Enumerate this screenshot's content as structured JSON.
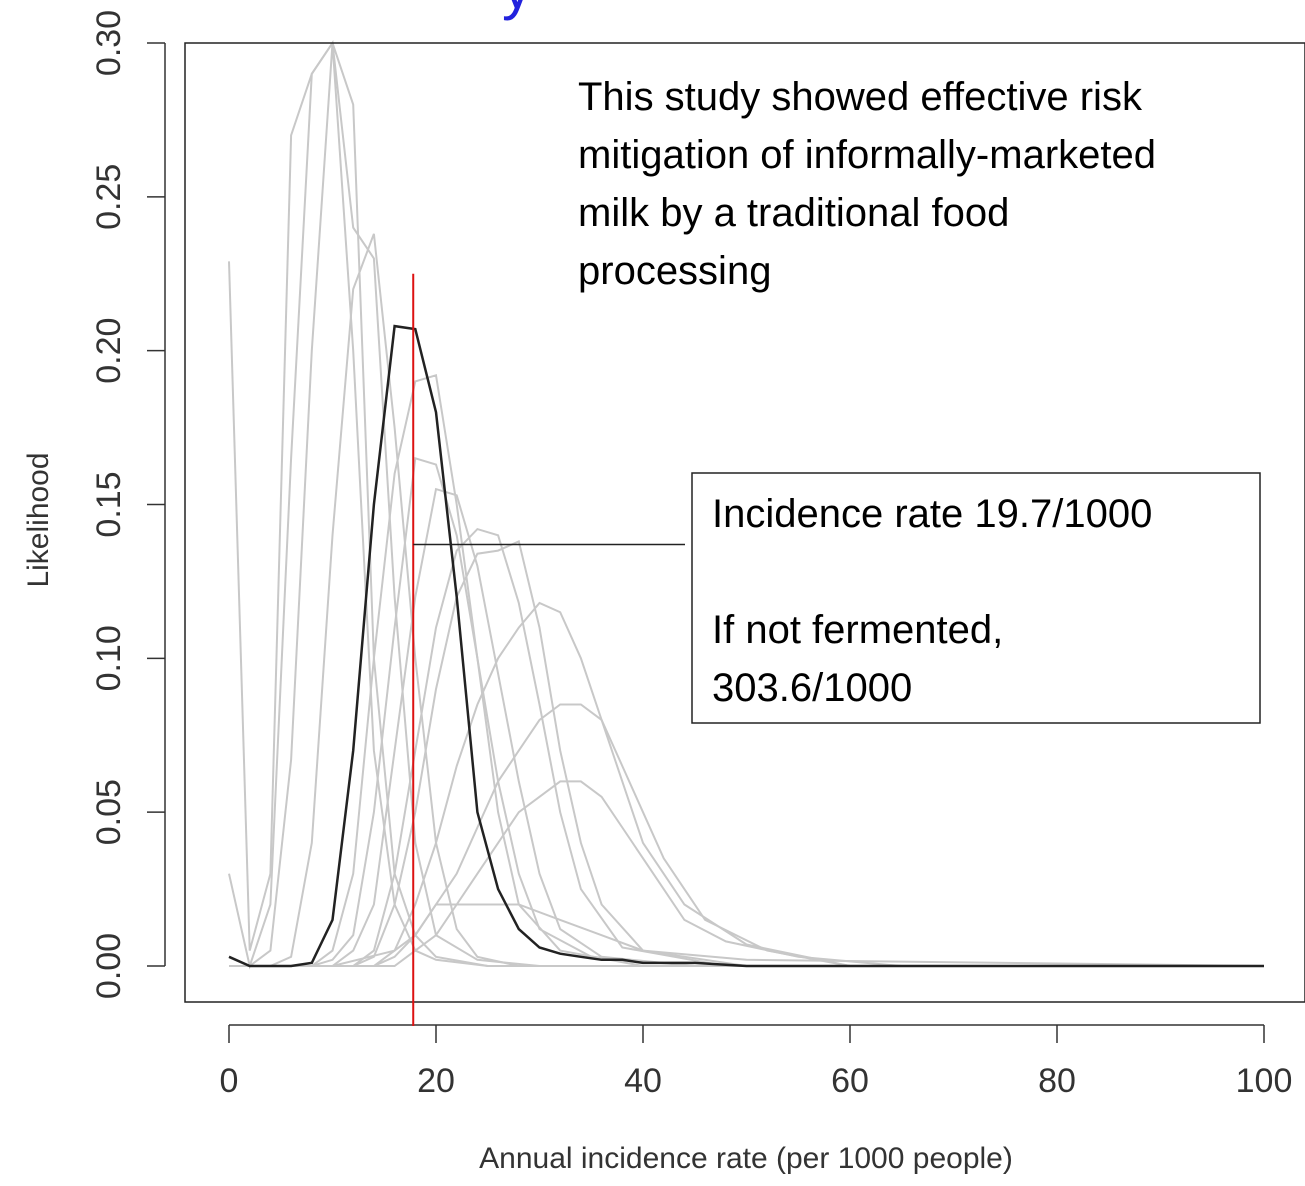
{
  "chart_data": {
    "type": "line",
    "title_fragment": "y",
    "xlabel": "Annual incidence rate (per 1000 people)",
    "ylabel": "Likelihood",
    "xlim": [
      0,
      100
    ],
    "ylim": [
      0,
      0.3
    ],
    "x_ticks": [
      "0",
      "20",
      "40",
      "60",
      "80",
      "100"
    ],
    "y_ticks": [
      "0.00",
      "0.05",
      "0.10",
      "0.15",
      "0.20",
      "0.25",
      "0.30"
    ],
    "grid": false,
    "colors": {
      "highlight": "#222222",
      "background_series": "#c8c8c8",
      "marker": "#dd1111",
      "title": "#2222dd"
    },
    "highlight_series": {
      "x": [
        0,
        2,
        4,
        6,
        8,
        10,
        12,
        14,
        16,
        18,
        20,
        22,
        24,
        26,
        28,
        30,
        32,
        34,
        36,
        38,
        40,
        45,
        50,
        60,
        70,
        80,
        90,
        100
      ],
      "y": [
        0.003,
        0.0,
        0.0,
        0.0,
        0.001,
        0.015,
        0.07,
        0.15,
        0.208,
        0.207,
        0.18,
        0.12,
        0.05,
        0.025,
        0.012,
        0.006,
        0.004,
        0.003,
        0.002,
        0.002,
        0.001,
        0.001,
        0.0,
        0.0,
        0.0,
        0.0,
        0.0,
        0.0
      ]
    },
    "background_series": [
      {
        "x": [
          0,
          2,
          4,
          6,
          8,
          10,
          12,
          14,
          16,
          18,
          20,
          25,
          30,
          100
        ],
        "y": [
          0.229,
          0.005,
          0.03,
          0.27,
          0.29,
          0.3,
          0.2,
          0.07,
          0.02,
          0.005,
          0.002,
          0.0,
          0.0,
          0.0
        ]
      },
      {
        "x": [
          0,
          2,
          4,
          6,
          8,
          10,
          12,
          14,
          16,
          18,
          20,
          25,
          100
        ],
        "y": [
          0.03,
          0.0,
          0.02,
          0.165,
          0.29,
          0.3,
          0.28,
          0.1,
          0.03,
          0.01,
          0.003,
          0.0,
          0.0
        ]
      },
      {
        "x": [
          0,
          2,
          4,
          6,
          8,
          10,
          12,
          14,
          16,
          18,
          20,
          24,
          30,
          100
        ],
        "y": [
          0.0,
          0.0,
          0.005,
          0.067,
          0.2,
          0.3,
          0.24,
          0.23,
          0.12,
          0.04,
          0.01,
          0.002,
          0.0,
          0.0
        ]
      },
      {
        "x": [
          0,
          4,
          6,
          8,
          10,
          12,
          14,
          16,
          18,
          20,
          22,
          24,
          28,
          35,
          100
        ],
        "y": [
          0.0,
          0.0,
          0.003,
          0.04,
          0.14,
          0.22,
          0.238,
          0.175,
          0.1,
          0.04,
          0.012,
          0.003,
          0.0,
          0.0,
          0.0
        ]
      },
      {
        "x": [
          0,
          8,
          10,
          12,
          14,
          16,
          18,
          20,
          22,
          24,
          26,
          28,
          32,
          40,
          100
        ],
        "y": [
          0.0,
          0.0,
          0.005,
          0.03,
          0.1,
          0.16,
          0.19,
          0.192,
          0.15,
          0.1,
          0.05,
          0.02,
          0.005,
          0.0,
          0.0
        ]
      },
      {
        "x": [
          0,
          8,
          10,
          12,
          14,
          16,
          18,
          20,
          22,
          24,
          26,
          28,
          30,
          35,
          45,
          100
        ],
        "y": [
          0.0,
          0.0,
          0.002,
          0.01,
          0.05,
          0.11,
          0.165,
          0.163,
          0.14,
          0.1,
          0.06,
          0.03,
          0.012,
          0.003,
          0.0,
          0.0
        ]
      },
      {
        "x": [
          0,
          10,
          12,
          14,
          16,
          18,
          20,
          22,
          24,
          26,
          28,
          30,
          32,
          36,
          45,
          100
        ],
        "y": [
          0.0,
          0.0,
          0.005,
          0.02,
          0.07,
          0.12,
          0.155,
          0.153,
          0.13,
          0.095,
          0.06,
          0.03,
          0.012,
          0.003,
          0.0,
          0.0
        ]
      },
      {
        "x": [
          0,
          12,
          14,
          16,
          18,
          20,
          22,
          24,
          26,
          28,
          30,
          32,
          34,
          38,
          48,
          100
        ],
        "y": [
          0.0,
          0.0,
          0.005,
          0.03,
          0.07,
          0.11,
          0.135,
          0.142,
          0.14,
          0.118,
          0.085,
          0.05,
          0.025,
          0.006,
          0.0,
          0.0
        ]
      },
      {
        "x": [
          0,
          12,
          14,
          16,
          18,
          20,
          22,
          24,
          26,
          28,
          30,
          32,
          34,
          36,
          40,
          50,
          100
        ],
        "y": [
          0.0,
          0.0,
          0.003,
          0.02,
          0.05,
          0.09,
          0.12,
          0.134,
          0.135,
          0.138,
          0.11,
          0.07,
          0.04,
          0.02,
          0.005,
          0.0,
          0.0
        ]
      },
      {
        "x": [
          0,
          14,
          16,
          18,
          20,
          22,
          24,
          26,
          28,
          30,
          32,
          34,
          36,
          38,
          40,
          44,
          50,
          60,
          100
        ],
        "y": [
          0.0,
          0.0,
          0.005,
          0.02,
          0.04,
          0.065,
          0.085,
          0.1,
          0.11,
          0.118,
          0.115,
          0.1,
          0.08,
          0.06,
          0.04,
          0.02,
          0.007,
          0.0,
          0.0
        ]
      },
      {
        "x": [
          0,
          14,
          16,
          18,
          20,
          22,
          24,
          26,
          28,
          30,
          32,
          34,
          36,
          38,
          40,
          42,
          46,
          52,
          60,
          100
        ],
        "y": [
          0.0,
          0.0,
          0.003,
          0.01,
          0.02,
          0.03,
          0.045,
          0.06,
          0.07,
          0.08,
          0.085,
          0.085,
          0.08,
          0.065,
          0.05,
          0.035,
          0.015,
          0.005,
          0.0,
          0.0
        ]
      },
      {
        "x": [
          0,
          16,
          18,
          20,
          22,
          24,
          26,
          28,
          30,
          32,
          34,
          36,
          38,
          40,
          42,
          44,
          48,
          55,
          65,
          100
        ],
        "y": [
          0.0,
          0.0,
          0.005,
          0.01,
          0.02,
          0.03,
          0.04,
          0.05,
          0.055,
          0.06,
          0.06,
          0.055,
          0.045,
          0.035,
          0.025,
          0.015,
          0.008,
          0.003,
          0.0,
          0.0
        ]
      },
      {
        "x": [
          0,
          10,
          16,
          18,
          20,
          24,
          28,
          32,
          36,
          40,
          50,
          100
        ],
        "y": [
          0.0,
          0.0,
          0.005,
          0.01,
          0.02,
          0.02,
          0.02,
          0.015,
          0.01,
          0.005,
          0.002,
          0.0
        ]
      }
    ],
    "marker_line": {
      "x": 17.8,
      "y_top": 0.225
    },
    "annotations": {
      "top_text": [
        "This study showed effective risk",
        "mitigation of informally-marketed",
        "milk by a traditional food",
        "processing"
      ],
      "box_text": [
        "Incidence rate 19.7/1000",
        "",
        "If not fermented,",
        "303.6/1000"
      ],
      "pointer_y": 0.137
    }
  }
}
